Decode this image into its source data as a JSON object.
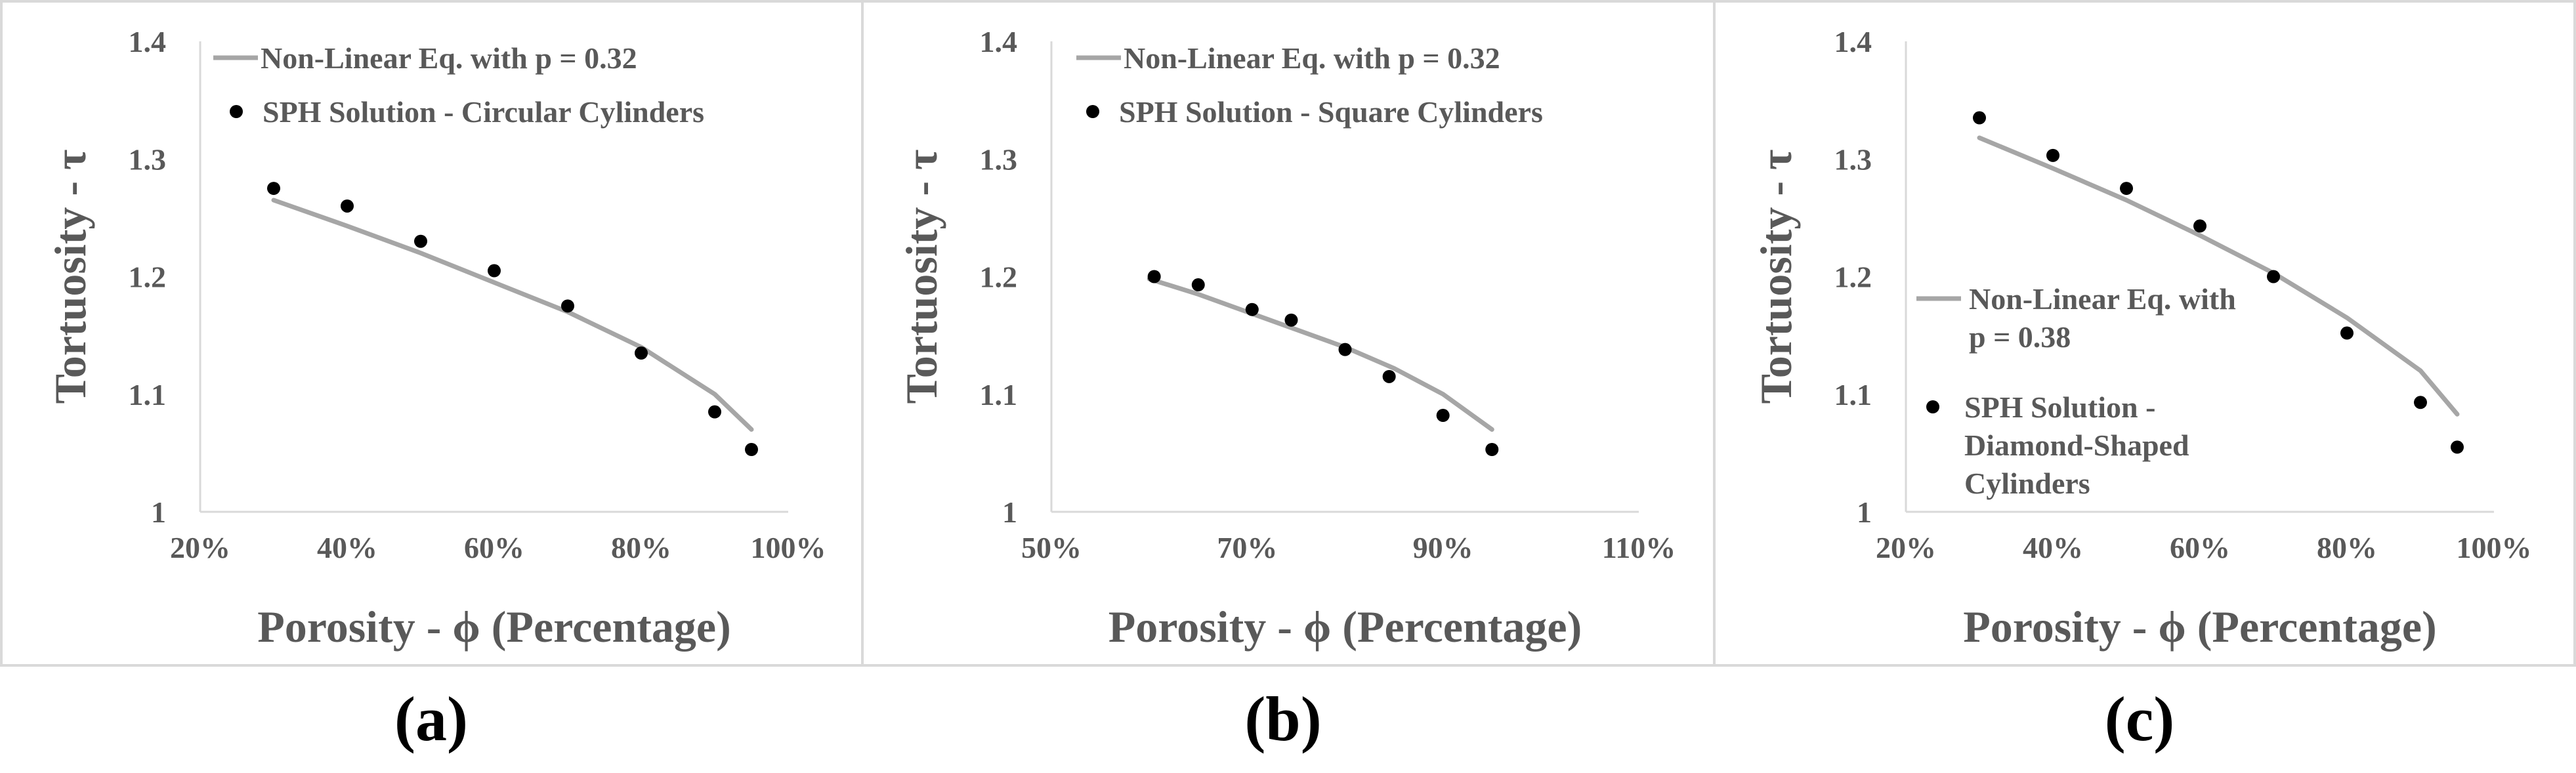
{
  "colors": {
    "text": "#595959",
    "caption": "#000000",
    "line": "#a6a6a6",
    "marker": "#000000",
    "axis": "#d9d9d9",
    "border": "#d9d9d9"
  },
  "chart_data": [
    {
      "id": "a",
      "type": "scatter",
      "caption": "(a)",
      "xlabel": "Porosity - ϕ (Percentage)",
      "ylabel": "Tortuosity - τ",
      "xlim": [
        0.2,
        1.0
      ],
      "ylim": [
        1.0,
        1.4
      ],
      "xticks": [
        0.2,
        0.4,
        0.6,
        0.8,
        1.0
      ],
      "xtick_labels": [
        "20%",
        "40%",
        "60%",
        "80%",
        "100%"
      ],
      "yticks": [
        1.0,
        1.1,
        1.2,
        1.3,
        1.4
      ],
      "ytick_labels": [
        "1",
        "1.1",
        "1.2",
        "1.3",
        "1.4"
      ],
      "grid": false,
      "legend_position": "top",
      "series": [
        {
          "name": "Non-Linear Eq. with p = 0.32",
          "kind": "line",
          "p": 0.32,
          "x": [
            0.3,
            0.4,
            0.5,
            0.6,
            0.7,
            0.8,
            0.9,
            0.95
          ],
          "y": [
            1.265,
            1.243,
            1.22,
            1.195,
            1.17,
            1.14,
            1.1,
            1.07
          ]
        },
        {
          "name": "SPH Solution - Circular Cylinders",
          "kind": "scatter",
          "x": [
            0.3,
            0.4,
            0.5,
            0.6,
            0.7,
            0.8,
            0.9,
            0.95
          ],
          "y": [
            1.275,
            1.26,
            1.23,
            1.205,
            1.175,
            1.135,
            1.085,
            1.053
          ]
        }
      ]
    },
    {
      "id": "b",
      "type": "scatter",
      "caption": "(b)",
      "xlabel": "Porosity - ϕ (Percentage)",
      "ylabel": "Tortuosity - τ",
      "xlim": [
        0.5,
        1.1
      ],
      "ylim": [
        1.0,
        1.4
      ],
      "xticks": [
        0.5,
        0.7,
        0.9,
        1.1
      ],
      "xtick_labels": [
        "50%",
        "70%",
        "90%",
        "110%"
      ],
      "yticks": [
        1.0,
        1.1,
        1.2,
        1.3,
        1.4
      ],
      "ytick_labels": [
        "1",
        "1.1",
        "1.2",
        "1.3",
        "1.4"
      ],
      "grid": false,
      "legend_position": "top",
      "series": [
        {
          "name": "Non-Linear Eq. with p = 0.32",
          "kind": "line",
          "p": 0.32,
          "x": [
            0.6,
            0.65,
            0.7,
            0.75,
            0.8,
            0.85,
            0.9,
            0.95
          ],
          "y": [
            1.198,
            1.185,
            1.17,
            1.155,
            1.14,
            1.122,
            1.1,
            1.07
          ]
        },
        {
          "name": "SPH Solution - Square Cylinders",
          "kind": "scatter",
          "x": [
            0.605,
            0.65,
            0.705,
            0.745,
            0.8,
            0.845,
            0.9,
            0.95
          ],
          "y": [
            1.2,
            1.193,
            1.172,
            1.163,
            1.138,
            1.115,
            1.082,
            1.053
          ]
        }
      ]
    },
    {
      "id": "c",
      "type": "scatter",
      "caption": "(c)",
      "xlabel": "Porosity - ϕ (Percentage)",
      "ylabel": "Tortuosity - τ",
      "xlim": [
        0.2,
        1.0
      ],
      "ylim": [
        1.0,
        1.4
      ],
      "xticks": [
        0.2,
        0.4,
        0.6,
        0.8,
        1.0
      ],
      "xtick_labels": [
        "20%",
        "40%",
        "60%",
        "80%",
        "100%"
      ],
      "yticks": [
        1.0,
        1.1,
        1.2,
        1.3,
        1.4
      ],
      "ytick_labels": [
        "1",
        "1.1",
        "1.2",
        "1.3",
        "1.4"
      ],
      "grid": false,
      "legend_position": "left",
      "series": [
        {
          "name": "Non-Linear Eq. with p = 0.38",
          "kind": "line",
          "p": 0.38,
          "name_lines": [
            "Non-Linear Eq. with",
            "p = 0.38"
          ],
          "x": [
            0.3,
            0.4,
            0.5,
            0.6,
            0.7,
            0.8,
            0.9,
            0.95
          ],
          "y": [
            1.318,
            1.292,
            1.265,
            1.235,
            1.203,
            1.165,
            1.12,
            1.083
          ]
        },
        {
          "name": "SPH Solution - Diamond-Shaped Cylinders",
          "kind": "scatter",
          "name_lines": [
            "SPH Solution -",
            "Diamond-Shaped",
            "Cylinders"
          ],
          "x": [
            0.3,
            0.4,
            0.5,
            0.6,
            0.7,
            0.8,
            0.9,
            0.95
          ],
          "y": [
            1.335,
            1.303,
            1.275,
            1.243,
            1.2,
            1.152,
            1.093,
            1.055
          ]
        }
      ]
    }
  ]
}
